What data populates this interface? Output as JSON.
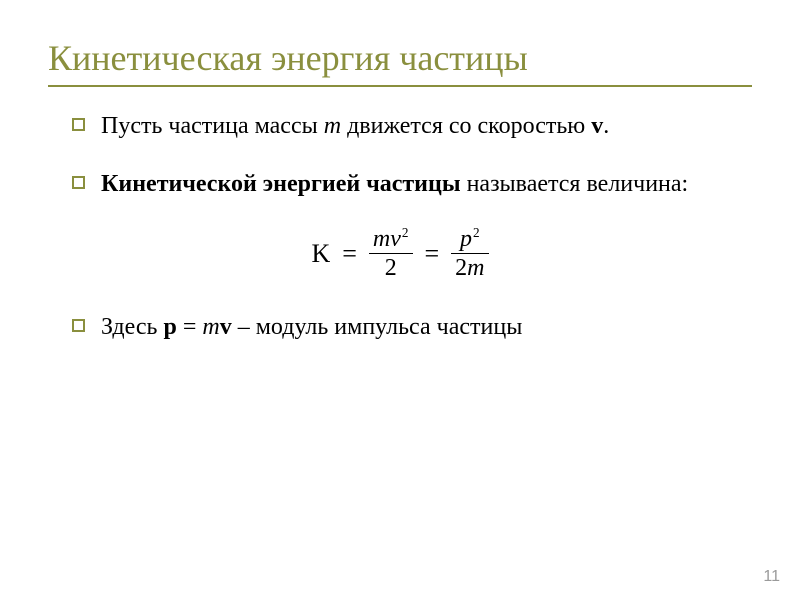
{
  "colors": {
    "title": "#8a8f3e",
    "rule": "#8a8f3e",
    "bullet_border": "#8a8f3e",
    "body_text": "#000000",
    "formula_text": "#000000",
    "pagenum": "#9a9a9a",
    "background": "#ffffff"
  },
  "title": {
    "text": "Кинетическая энергия частицы",
    "fontsize": 36
  },
  "bullets": [
    {
      "runs": [
        {
          "t": "Пусть частица массы "
        },
        {
          "t": "m",
          "italic": true
        },
        {
          "t": " движется со скоростью "
        },
        {
          "t": "v",
          "bold": true
        },
        {
          "t": "."
        }
      ]
    },
    {
      "runs": [
        {
          "t": "Кинетической энергией частицы ",
          "bold": true
        },
        {
          "t": "называется величина:"
        }
      ]
    }
  ],
  "formula": {
    "lhs": "K",
    "frac1": {
      "num_var": "mv",
      "num_sup": "2",
      "den": "2"
    },
    "frac2": {
      "num_var": "p",
      "num_sup": "2",
      "den_pre": "2",
      "den_var": "m"
    }
  },
  "bullet3": {
    "runs": [
      {
        "t": "Здесь "
      },
      {
        "t": "p",
        "bold": true
      },
      {
        "t": " = "
      },
      {
        "t": "m",
        "italic": true
      },
      {
        "t": "v",
        "bold": true
      },
      {
        "t": " – модуль импульса частицы"
      }
    ]
  },
  "pagenum": "11"
}
